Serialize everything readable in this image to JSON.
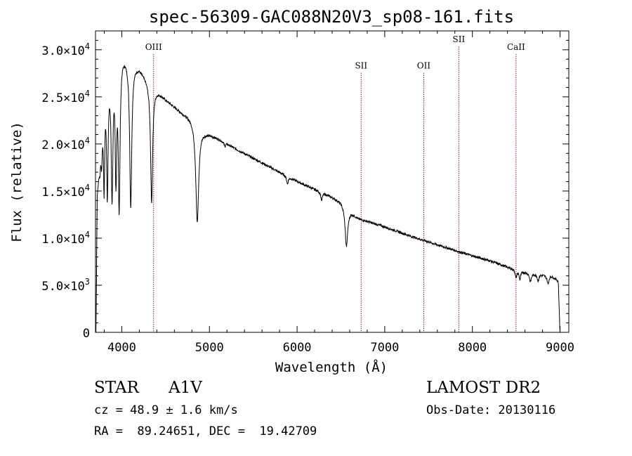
{
  "chart_data": {
    "type": "line",
    "title": "spec-56309-GAC088N20V3_sp08-161.fits",
    "xlabel": "Wavelength (Å)",
    "ylabel": "Flux (relative)",
    "xlim": [
      3700,
      9100
    ],
    "ylim": [
      0,
      32000
    ],
    "x_ticks": [
      4000,
      5000,
      6000,
      7000,
      8000,
      9000
    ],
    "x_tick_labels": [
      "4000",
      "5000",
      "6000",
      "7000",
      "8000",
      "9000"
    ],
    "y_ticks": [
      0,
      5000,
      10000,
      15000,
      20000,
      25000,
      30000
    ],
    "y_tick_labels": [
      {
        "mant": "0",
        "exp": ""
      },
      {
        "mant": "5.0×10",
        "exp": "3"
      },
      {
        "mant": "1.0×10",
        "exp": "4"
      },
      {
        "mant": "1.5×10",
        "exp": "4"
      },
      {
        "mant": "2.0×10",
        "exp": "4"
      },
      {
        "mant": "2.5×10",
        "exp": "4"
      },
      {
        "mant": "3.0×10",
        "exp": "4"
      }
    ],
    "line_color": "#000000",
    "marker_color": "#8b1a1a",
    "lines": [
      {
        "label": "OIII",
        "x": 4363,
        "label_y": 30000
      },
      {
        "label": "SII",
        "x": 6731,
        "label_y": 28000
      },
      {
        "label": "OII",
        "x": 7445,
        "label_y": 28000
      },
      {
        "label": "SII",
        "x": 7845,
        "label_y": 30800
      },
      {
        "label": "CaII",
        "x": 8498,
        "label_y": 30000
      }
    ],
    "series": [
      {
        "continuum": [
          [
            3705,
            0
          ],
          [
            3720,
            15000
          ],
          [
            3800,
            26000
          ],
          [
            3900,
            29500
          ],
          [
            4000,
            30000
          ],
          [
            4050,
            29500
          ],
          [
            4100,
            29000
          ],
          [
            4200,
            28200
          ],
          [
            4300,
            26800
          ],
          [
            4400,
            25800
          ],
          [
            4500,
            24800
          ],
          [
            4600,
            24000
          ],
          [
            4700,
            23300
          ],
          [
            4800,
            22800
          ],
          [
            4950,
            21300
          ],
          [
            5100,
            20600
          ],
          [
            5300,
            19500
          ],
          [
            5500,
            18500
          ],
          [
            5700,
            17500
          ],
          [
            5900,
            16500
          ],
          [
            6100,
            15600
          ],
          [
            6300,
            14800
          ],
          [
            6500,
            13900
          ],
          [
            6700,
            12100
          ],
          [
            7000,
            11200
          ],
          [
            7300,
            10200
          ],
          [
            7600,
            9300
          ],
          [
            7900,
            8400
          ],
          [
            8200,
            7600
          ],
          [
            8500,
            6600
          ],
          [
            8700,
            6200
          ],
          [
            8900,
            6000
          ],
          [
            8980,
            5500
          ],
          [
            9000,
            0
          ]
        ],
        "absorption": [
          [
            3750,
            1600,
            8
          ],
          [
            3770,
            3200,
            8
          ],
          [
            3798,
            10000,
            8
          ],
          [
            3835,
            12000,
            10
          ],
          [
            3889,
            14000,
            12
          ],
          [
            3933,
            12000,
            10
          ],
          [
            3970,
            16000,
            12
          ],
          [
            4102,
            15500,
            14
          ],
          [
            4340,
            12500,
            14
          ],
          [
            4861,
            10500,
            20
          ],
          [
            5890,
            800,
            10
          ],
          [
            5175,
            400,
            10
          ],
          [
            6280,
            900,
            10
          ],
          [
            6563,
            4200,
            18
          ],
          [
            8498,
            800,
            10
          ],
          [
            8542,
            900,
            10
          ],
          [
            8662,
            900,
            12
          ],
          [
            8750,
            700,
            10
          ],
          [
            8863,
            900,
            12
          ],
          [
            9015,
            800,
            10
          ]
        ]
      }
    ]
  },
  "info": {
    "object_type": "STAR",
    "subclass": "A1V",
    "survey": "LAMOST DR2",
    "cz": "cz = 48.9 ± 1.6 km/s",
    "obs_date": "Obs-Date: 20130116",
    "coords": "RA =  89.24651, DEC =  19.42709"
  }
}
